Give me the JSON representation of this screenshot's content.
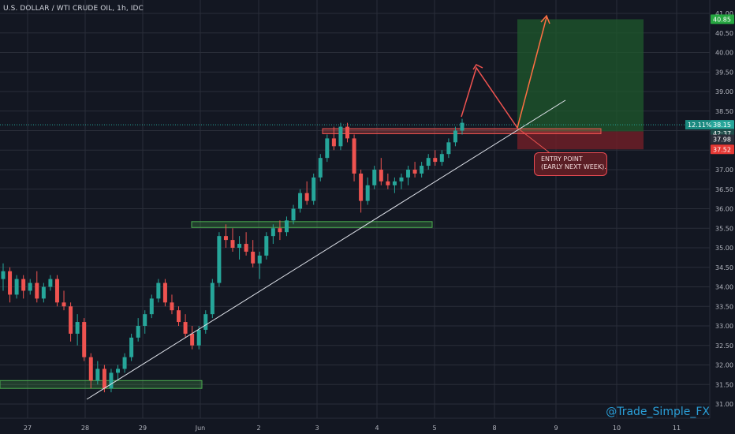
{
  "header": {
    "title": "U.S. DOLLAR / WTI CRUDE OIL, 1h, IDC"
  },
  "watermark": "@Trade_Simple_FX",
  "annotation": {
    "line1": "ENTRY POINT",
    "line2": "(EARLY NEXT WEEK)."
  },
  "price_labels": {
    "target": "40.85",
    "current_pct": "12.11%",
    "current": "38.15",
    "countdown": "42:37",
    "entry": "37.98",
    "stop": "37.52"
  },
  "colors": {
    "background": "#131722",
    "grid": "#2a2e39",
    "up": "#26a69a",
    "down": "#ef5350",
    "target_zone": "#1f5a2c",
    "stop_zone": "#6d1e27",
    "support_zone": "#4caf50",
    "resistance_zone": "#ef5350",
    "trendline": "#e0e3eb",
    "arrow_up": "#ef5350",
    "arrow_target": "#ff7043"
  },
  "chart_data": {
    "type": "candlestick",
    "title": "U.S. DOLLAR / WTI CRUDE OIL, 1h, IDC",
    "y_ticks": [
      "41.00",
      "40.50",
      "40.00",
      "39.50",
      "39.00",
      "38.50",
      "38.00",
      "37.50",
      "37.00",
      "36.50",
      "36.00",
      "35.50",
      "35.00",
      "34.50",
      "34.00",
      "33.50",
      "33.00",
      "32.50",
      "32.00",
      "31.50",
      "31.00"
    ],
    "x_ticks": [
      "27",
      "28",
      "29",
      "Jun",
      "2",
      "3",
      "4",
      "5",
      "8",
      "9",
      "10",
      "11"
    ],
    "ylim": [
      30.8,
      41.3
    ],
    "series": [
      {
        "values": [
          [
            34.2,
            34.6,
            33.9,
            34.4
          ],
          [
            34.4,
            34.5,
            33.6,
            33.8
          ],
          [
            33.8,
            34.3,
            33.7,
            34.2
          ],
          [
            34.2,
            34.3,
            33.7,
            33.9
          ],
          [
            33.9,
            34.2,
            33.8,
            34.1
          ],
          [
            34.1,
            34.4,
            33.6,
            33.7
          ],
          [
            33.7,
            34.1,
            33.6,
            34.0
          ],
          [
            34.0,
            34.3,
            33.9,
            34.2
          ],
          [
            34.2,
            34.3,
            33.5,
            33.6
          ],
          [
            33.6,
            33.9,
            33.4,
            33.5
          ],
          [
            33.5,
            33.6,
            32.6,
            32.8
          ],
          [
            32.8,
            33.3,
            32.5,
            33.1
          ],
          [
            33.1,
            33.2,
            32.1,
            32.2
          ],
          [
            32.2,
            32.3,
            31.4,
            31.6
          ],
          [
            31.6,
            32.1,
            31.5,
            31.9
          ],
          [
            31.9,
            32.0,
            31.3,
            31.4
          ],
          [
            31.4,
            31.9,
            31.3,
            31.8
          ],
          [
            31.8,
            32.0,
            31.6,
            31.9
          ],
          [
            31.9,
            32.3,
            31.8,
            32.2
          ],
          [
            32.2,
            32.8,
            32.1,
            32.7
          ],
          [
            32.7,
            33.2,
            32.6,
            33.0
          ],
          [
            33.0,
            33.4,
            32.8,
            33.3
          ],
          [
            33.3,
            33.8,
            33.2,
            33.7
          ],
          [
            33.7,
            34.2,
            33.6,
            34.1
          ],
          [
            34.1,
            34.2,
            33.5,
            33.6
          ],
          [
            33.6,
            33.8,
            33.3,
            33.4
          ],
          [
            33.4,
            33.5,
            33.0,
            33.1
          ],
          [
            33.1,
            33.3,
            32.7,
            32.8
          ],
          [
            32.8,
            33.0,
            32.4,
            32.5
          ],
          [
            32.5,
            33.0,
            32.4,
            32.9
          ],
          [
            32.9,
            33.4,
            32.8,
            33.3
          ],
          [
            33.3,
            34.2,
            33.2,
            34.1
          ],
          [
            34.1,
            35.4,
            34.0,
            35.3
          ],
          [
            35.3,
            35.6,
            35.0,
            35.2
          ],
          [
            35.2,
            35.5,
            34.9,
            35.0
          ],
          [
            35.0,
            35.3,
            34.7,
            35.1
          ],
          [
            35.1,
            35.4,
            34.8,
            34.9
          ],
          [
            34.9,
            35.2,
            34.5,
            34.6
          ],
          [
            34.6,
            34.9,
            34.2,
            34.8
          ],
          [
            34.8,
            35.4,
            34.7,
            35.3
          ],
          [
            35.3,
            35.6,
            35.1,
            35.5
          ],
          [
            35.5,
            35.7,
            35.2,
            35.4
          ],
          [
            35.4,
            35.8,
            35.3,
            35.7
          ],
          [
            35.7,
            36.1,
            35.6,
            36.0
          ],
          [
            36.0,
            36.5,
            35.9,
            36.4
          ],
          [
            36.4,
            36.7,
            36.1,
            36.2
          ],
          [
            36.2,
            36.9,
            36.1,
            36.8
          ],
          [
            36.8,
            37.4,
            36.7,
            37.3
          ],
          [
            37.3,
            37.9,
            37.2,
            37.8
          ],
          [
            37.8,
            38.1,
            37.5,
            37.6
          ],
          [
            37.6,
            38.2,
            37.5,
            38.1
          ],
          [
            38.1,
            38.2,
            37.7,
            37.8
          ],
          [
            37.8,
            37.9,
            36.7,
            36.9
          ],
          [
            36.9,
            37.0,
            35.9,
            36.2
          ],
          [
            36.2,
            36.8,
            36.1,
            36.6
          ],
          [
            36.6,
            37.1,
            36.5,
            37.0
          ],
          [
            37.0,
            37.3,
            36.6,
            36.7
          ],
          [
            36.7,
            36.9,
            36.5,
            36.6
          ],
          [
            36.6,
            36.8,
            36.4,
            36.7
          ],
          [
            36.7,
            36.9,
            36.5,
            36.8
          ],
          [
            36.8,
            37.1,
            36.6,
            37.0
          ],
          [
            37.0,
            37.2,
            36.8,
            36.9
          ],
          [
            36.9,
            37.2,
            36.8,
            37.1
          ],
          [
            37.1,
            37.4,
            37.0,
            37.3
          ],
          [
            37.3,
            37.5,
            37.1,
            37.2
          ],
          [
            37.2,
            37.5,
            37.1,
            37.4
          ],
          [
            37.4,
            37.8,
            37.3,
            37.7
          ],
          [
            37.7,
            38.1,
            37.6,
            38.0
          ],
          [
            38.0,
            38.3,
            37.9,
            38.2
          ]
        ]
      }
    ]
  }
}
